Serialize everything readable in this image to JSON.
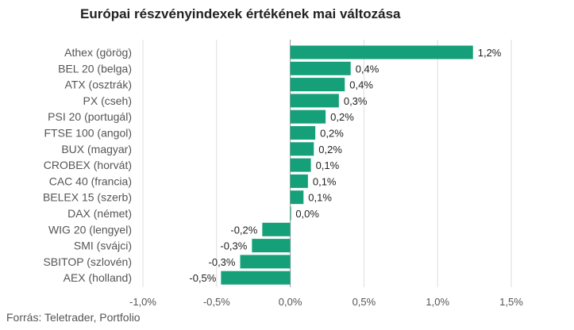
{
  "title": "Európai részvényindexek értékének mai változása",
  "source": "Forrás: Teletrader, Portfolio",
  "colors": {
    "bar": "#16a07a",
    "grid": "#dddddd",
    "zero_line": "#999999"
  },
  "chart_data": {
    "type": "bar",
    "orientation": "horizontal",
    "title": "Európai részvényindexek értékének mai változása",
    "xlabel": "",
    "ylabel": "",
    "xlim": [
      -1.0,
      1.5
    ],
    "x_ticks": [
      -1.0,
      -0.5,
      0.0,
      0.5,
      1.0,
      1.5
    ],
    "x_tick_labels": [
      "-1,0%",
      "-0,5%",
      "0,0%",
      "0,5%",
      "1,0%",
      "1,5%"
    ],
    "grid": true,
    "categories": [
      "Athex (görög)",
      "BEL 20 (belga)",
      "ATX (osztrák)",
      "PX (cseh)",
      "PSI 20 (portugál)",
      "FTSE 100 (angol)",
      "BUX (magyar)",
      "CROBEX (horvát)",
      "CAC 40 (francia)",
      "BELEX 15 (szerb)",
      "DAX (német)",
      "WIG 20 (lengyel)",
      "SMI (svájci)",
      "SBITOP (szlovén)",
      "AEX (holland)"
    ],
    "values": [
      1.24,
      0.41,
      0.37,
      0.33,
      0.24,
      0.17,
      0.16,
      0.14,
      0.12,
      0.09,
      0.004,
      -0.19,
      -0.26,
      -0.34,
      -0.47
    ],
    "value_labels": [
      "1,2%",
      "0,4%",
      "0,4%",
      "0,3%",
      "0,2%",
      "0,2%",
      "0,2%",
      "0,1%",
      "0,1%",
      "0,1%",
      "0,0%",
      "-0,2%",
      "-0,3%",
      "-0,3%",
      "-0,5%"
    ]
  }
}
